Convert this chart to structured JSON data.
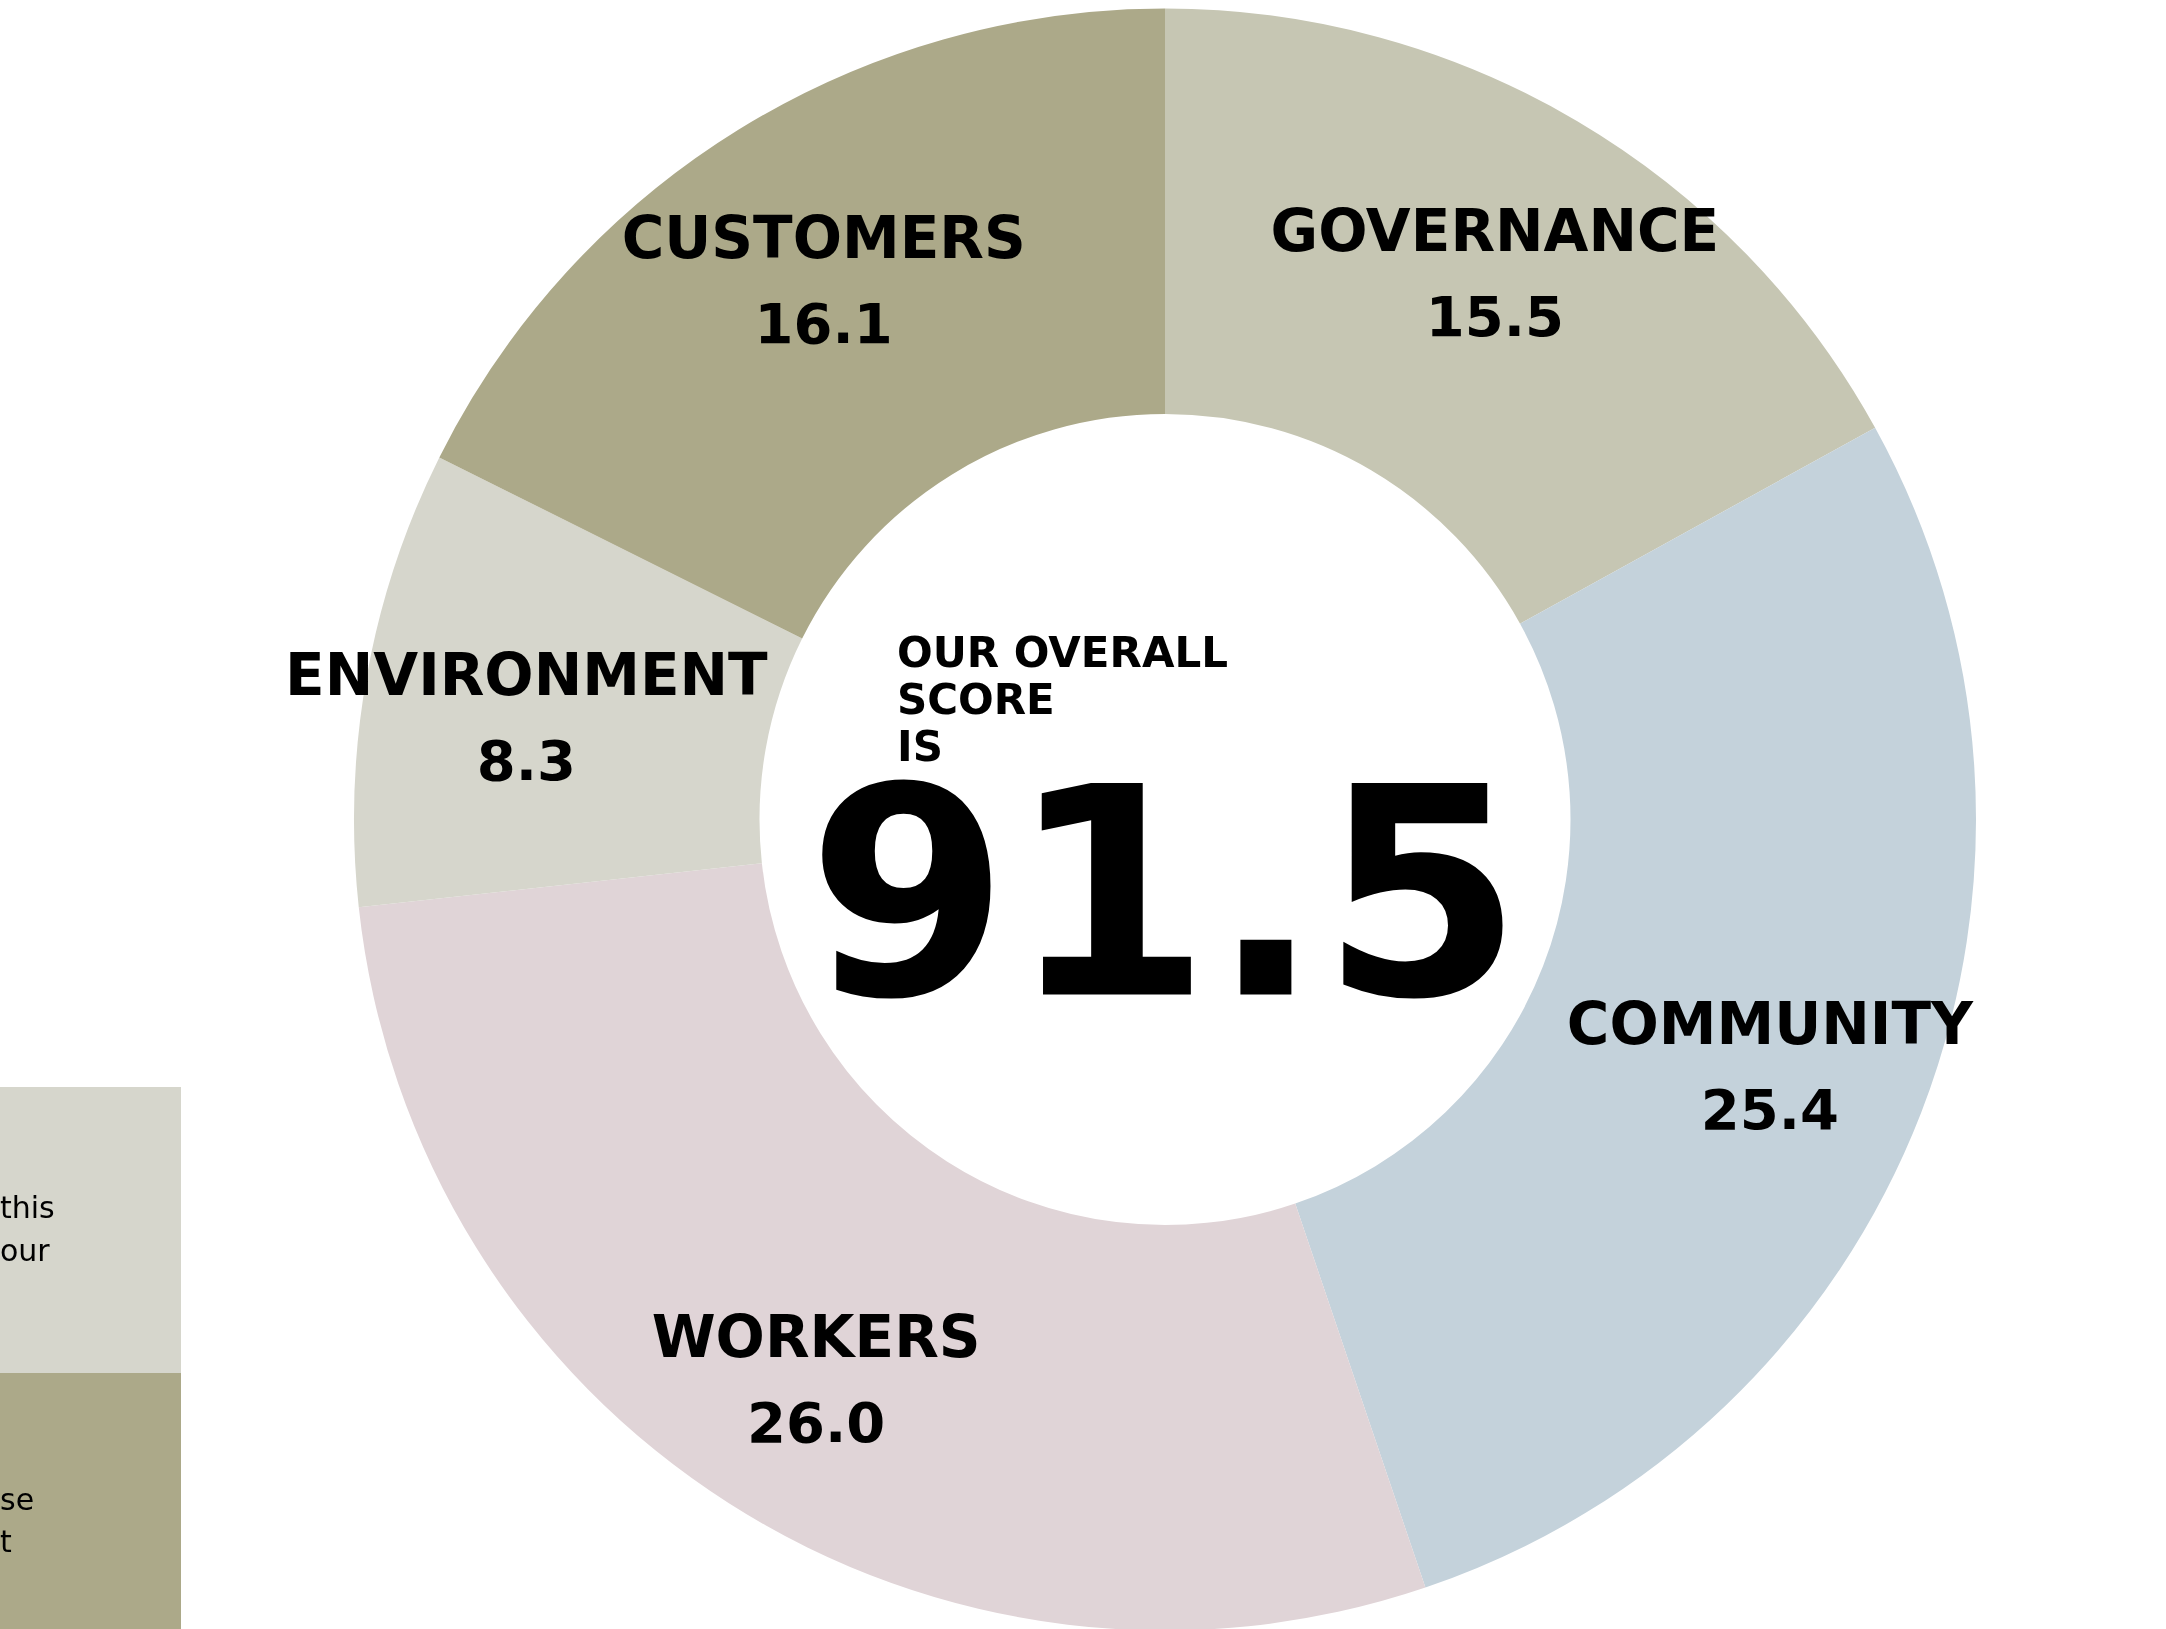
{
  "chart_data": {
    "type": "donut",
    "title": "OUR OVERALL\nSCORE\nIS",
    "categories": [
      "GOVERNANCE",
      "COMMUNITY",
      "WORKERS",
      "ENVIRONMENT",
      "CUSTOMERS"
    ],
    "values": [
      15.5,
      25.4,
      26.0,
      8.3,
      16.1
    ],
    "colors": [
      "#c6c6b3",
      "#c4d2db",
      "#e0d4d7",
      "#d6d6cc",
      "#aca989"
    ],
    "value_labels": [
      "15.5",
      "25.4",
      "26.0",
      "8.3",
      "16.1"
    ],
    "annotations": [
      "91.5",
      "this",
      "our",
      "se",
      "t"
    ],
    "legend": false
  }
}
